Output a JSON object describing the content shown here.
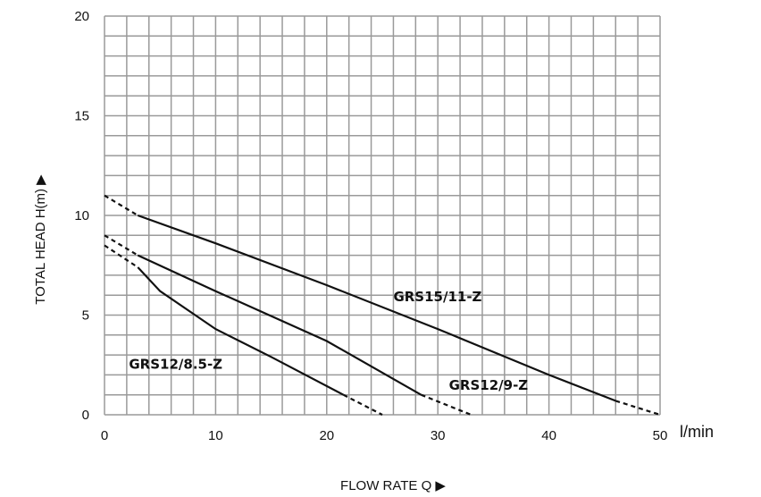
{
  "chart_data": {
    "type": "line",
    "title": "",
    "xlabel": "FLOW RATE Q ▶",
    "ylabel": "TOTAL HEAD H(m) ▶",
    "x_unit": "l/min",
    "xlim": [
      0,
      50
    ],
    "ylim": [
      0,
      20
    ],
    "x_ticks": [
      0,
      10,
      20,
      30,
      40,
      50
    ],
    "y_ticks": [
      0,
      5,
      10,
      15,
      20
    ],
    "grid": true,
    "series": [
      {
        "name": "GRS15/11-Z",
        "label_at": [
          26,
          5.7
        ],
        "dashed_start": [
          [
            0,
            11.0
          ],
          [
            3,
            10.0
          ]
        ],
        "points": [
          [
            3,
            10.0
          ],
          [
            10,
            8.6
          ],
          [
            20,
            6.5
          ],
          [
            30,
            4.3
          ],
          [
            40,
            2.0
          ],
          [
            46,
            0.7
          ]
        ],
        "dashed_end": [
          [
            46,
            0.7
          ],
          [
            50,
            0.0
          ]
        ]
      },
      {
        "name": "GRS12/9-Z",
        "label_at": [
          31,
          1.25
        ],
        "dashed_start": [
          [
            0,
            9.0
          ],
          [
            3,
            8.0
          ]
        ],
        "points": [
          [
            3,
            8.0
          ],
          [
            10,
            6.2
          ],
          [
            20,
            3.7
          ],
          [
            28.5,
            1.0
          ]
        ],
        "dashed_end": [
          [
            28.5,
            1.0
          ],
          [
            33,
            0.0
          ]
        ]
      },
      {
        "name": "GRS12/8.5-Z",
        "label_at": [
          2.2,
          2.3
        ],
        "dashed_start": [
          [
            0,
            8.5
          ],
          [
            3,
            7.4
          ]
        ],
        "points": [
          [
            3,
            7.4
          ],
          [
            5,
            6.2
          ],
          [
            10,
            4.3
          ],
          [
            15,
            2.9
          ],
          [
            21.5,
            1.0
          ]
        ],
        "dashed_end": [
          [
            21.5,
            1.0
          ],
          [
            25,
            0.0
          ]
        ]
      }
    ]
  }
}
